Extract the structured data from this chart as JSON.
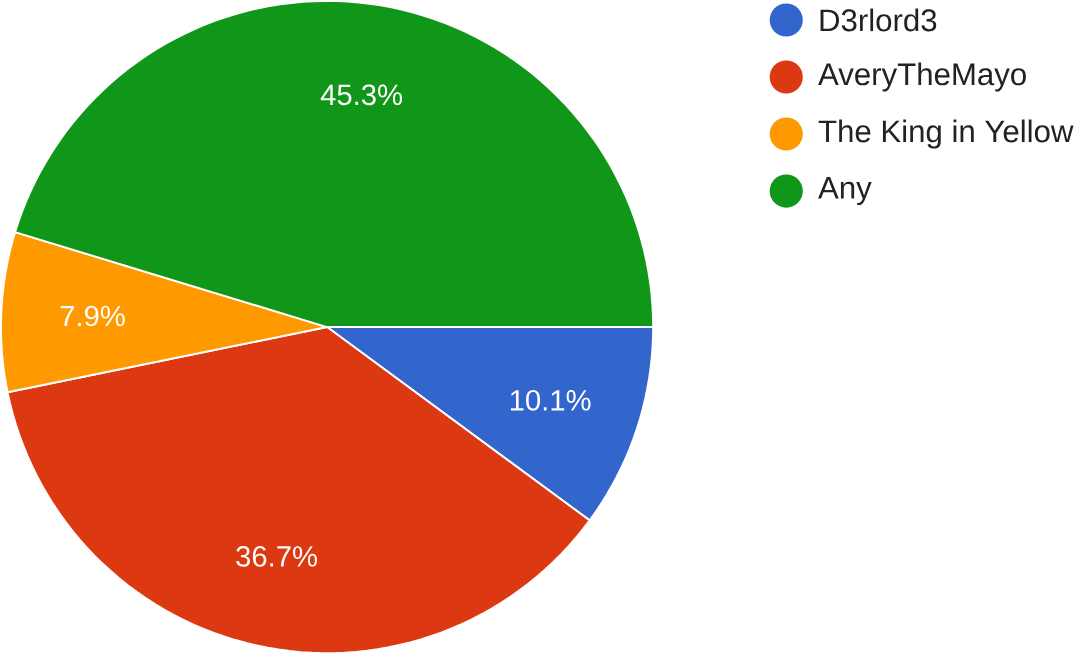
{
  "chart_data": {
    "type": "pie",
    "categories": [
      "D3rlord3",
      "AveryTheMayo",
      "The King in Yellow",
      "Any"
    ],
    "values": [
      10.1,
      36.7,
      7.9,
      45.3
    ],
    "colors": [
      "#3366cc",
      "#dc3912",
      "#ff9900",
      "#109618"
    ],
    "value_labels": [
      "10.1%",
      "36.7%",
      "7.9%",
      "45.3%"
    ],
    "legend": "top right"
  }
}
